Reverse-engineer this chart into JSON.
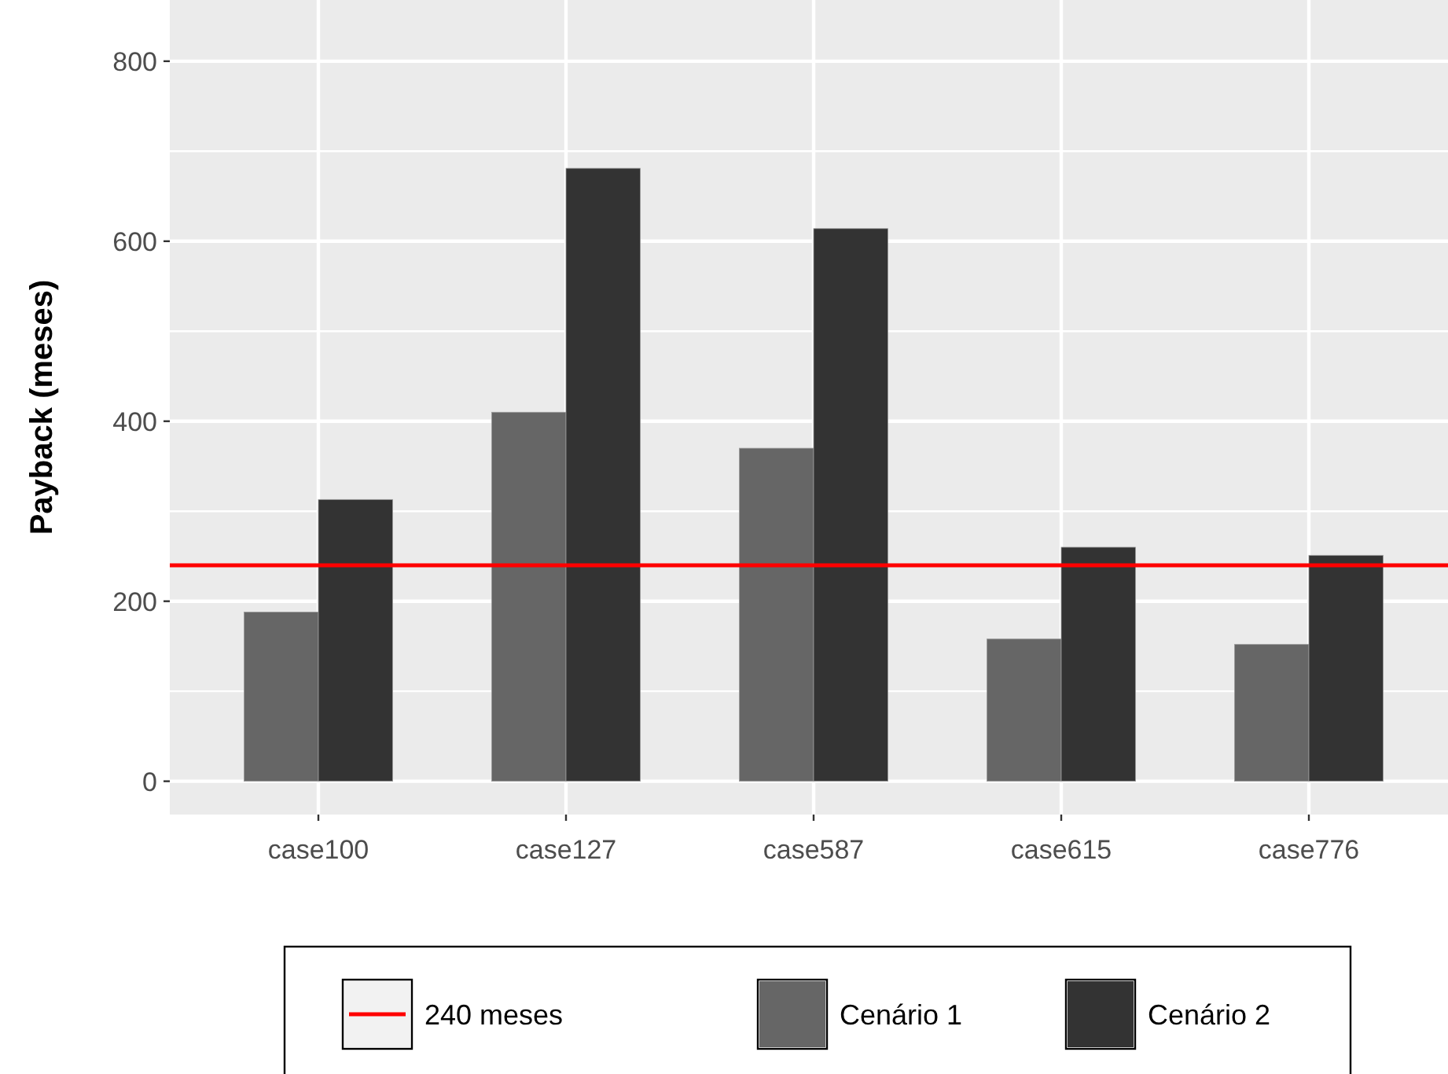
{
  "chart_data": {
    "type": "bar",
    "ylabel": "Payback (meses)",
    "categories": [
      "case100",
      "case127",
      "case587",
      "case615",
      "case776"
    ],
    "series": [
      {
        "name": "Cenário 1",
        "color": "#666666",
        "values": [
          188,
          410,
          370,
          158,
          152
        ]
      },
      {
        "name": "Cenário 2",
        "color": "#333333",
        "values": [
          313,
          681,
          614,
          260,
          251
        ]
      }
    ],
    "ylim": [
      -37,
      868
    ],
    "yticks": [
      0,
      200,
      400,
      600,
      800
    ],
    "grid": true,
    "legend": "bottom",
    "ref_lines": [
      {
        "axis": "y",
        "value": 240,
        "label": "240 meses",
        "color": "#ff0000"
      }
    ]
  }
}
